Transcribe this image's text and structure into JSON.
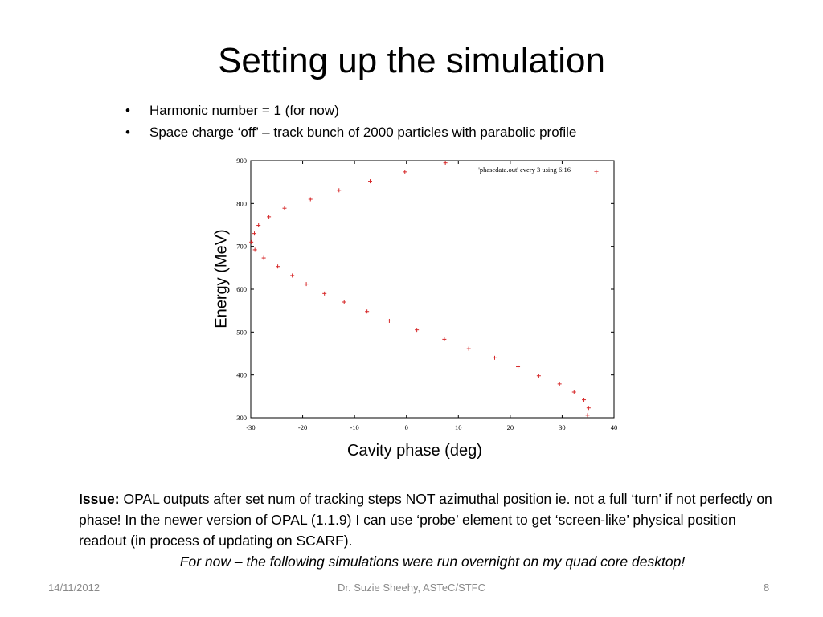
{
  "slide": {
    "title": "Setting up the simulation",
    "bullets": [
      "Harmonic number = 1 (for now)",
      "Space charge ‘off’ – track bunch of 2000 particles with parabolic profile"
    ],
    "bullet_glyph": "•",
    "issue_label": "Issue:",
    "issue_text": "OPAL outputs after set num of tracking steps NOT azimuthal position ie. not a full ‘turn’ if not perfectly on phase! In the newer version of OPAL (1.1.9) I can use ‘probe’ element to get ‘screen-like’ physical position readout  (in process of updating on SCARF).",
    "issue_note": "For now – the following simulations were run overnight on my quad core desktop!",
    "footer": {
      "date": "14/11/2012",
      "author": "Dr. Suzie Sheehy, ASTeC/STFC",
      "page": "8"
    }
  },
  "chart_data": {
    "type": "scatter",
    "xlabel": "Cavity phase (deg)",
    "ylabel": "Energy (MeV)",
    "xlim": [
      -30,
      40
    ],
    "ylim": [
      300,
      900
    ],
    "xticks": [
      -30,
      -20,
      -10,
      0,
      10,
      20,
      30,
      40
    ],
    "yticks": [
      300,
      400,
      500,
      600,
      700,
      800,
      900
    ],
    "grid": false,
    "legend_position": "top-right",
    "marker_color": "#d62728",
    "series": [
      {
        "name": "'phasedata.out' every 3 using 6:16",
        "x": [
          7.5,
          -0.3,
          -7,
          -13,
          -18.5,
          -23.5,
          -26.5,
          -28.5,
          -29.3,
          -29.9,
          -29.2,
          -27.5,
          -24.8,
          -22,
          -19.3,
          -15.8,
          -12,
          -7.6,
          -3.3,
          2,
          7.3,
          12,
          17,
          21.5,
          25.5,
          29.5,
          32.3,
          34.2,
          35.1,
          34.9
        ],
        "y": [
          895,
          874,
          852,
          831,
          810,
          789,
          769,
          749,
          730,
          710,
          692,
          673,
          653,
          632,
          612,
          590,
          570,
          548,
          526,
          505,
          483,
          461,
          440,
          419,
          398,
          379,
          360,
          342,
          323,
          306
        ]
      }
    ]
  }
}
